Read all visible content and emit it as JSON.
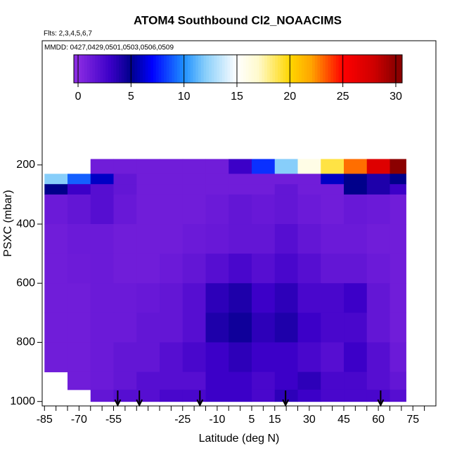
{
  "chart_data": {
    "type": "curtain",
    "title": "ATOM4 Southbound Cl2_NOAACIMS",
    "subtitle": "Flts: 2,3,4,5,6,7",
    "annotation": "MMDD: 0427,0429,0501,0503,0506,0509",
    "x_label": "Latitude (deg N)",
    "y_label": "PSXC (mbar)",
    "xlim": [
      -86,
      85
    ],
    "ylim": [
      1015,
      -220
    ],
    "xticks": [
      -85,
      -70,
      -55,
      -25,
      -10,
      5,
      15,
      30,
      45,
      60,
      75
    ],
    "xminorticks": [
      -80,
      -75,
      -65,
      -60,
      -50,
      -45,
      -40,
      -35,
      -30,
      -20,
      -15,
      -5,
      0,
      10,
      20,
      25,
      35,
      40,
      50,
      55,
      65,
      70,
      80
    ],
    "yticks": [
      200,
      400,
      600,
      800,
      1000
    ],
    "clim": [
      -0.4,
      30.6
    ],
    "cticks": [
      0,
      5,
      10,
      15,
      20,
      25,
      30
    ],
    "colorscale": [
      {
        "value": 0,
        "color": "#8a2be2"
      },
      {
        "value": 3,
        "color": "#3c00c8"
      },
      {
        "value": 5,
        "color": "#00008b"
      },
      {
        "value": 7,
        "color": "#0000ff"
      },
      {
        "value": 10,
        "color": "#1e90ff"
      },
      {
        "value": 12,
        "color": "#87cefa"
      },
      {
        "value": 15,
        "color": "#ffffff"
      },
      {
        "value": 17,
        "color": "#fffacd"
      },
      {
        "value": 20,
        "color": "#ffd700"
      },
      {
        "value": 22,
        "color": "#ffa500"
      },
      {
        "value": 25,
        "color": "#ff0000"
      },
      {
        "value": 28,
        "color": "#cd0000"
      },
      {
        "value": 30,
        "color": "#8b0000"
      }
    ],
    "lat_edges": [
      -85,
      -75,
      -65,
      -55,
      -45,
      -35,
      -25,
      -15,
      -5,
      5,
      15,
      25,
      35,
      45,
      55,
      65,
      72
    ],
    "p_edges": [
      180,
      230,
      265,
      300,
      400,
      500,
      600,
      700,
      800,
      900,
      960,
      1000
    ],
    "z": [
      [
        null,
        null,
        1,
        1,
        1,
        1,
        1,
        1,
        3,
        8,
        12,
        16,
        19,
        23,
        27,
        30
      ],
      [
        12,
        9,
        6,
        1.5,
        1,
        1,
        1,
        1,
        1,
        1,
        1,
        1,
        6,
        5,
        4,
        5
      ],
      [
        5,
        3,
        2,
        1.5,
        1,
        1,
        1,
        1,
        1,
        1,
        1.5,
        1,
        1,
        5,
        4,
        3
      ],
      [
        1.2,
        1.5,
        2,
        1.3,
        1,
        1,
        1,
        1.2,
        1.5,
        1.3,
        1.5,
        1.2,
        1,
        1.3,
        1.2,
        1
      ],
      [
        1,
        1.2,
        1.2,
        1,
        1,
        1,
        1.2,
        1.3,
        1.5,
        1.5,
        2,
        1.5,
        1.2,
        1.2,
        1,
        1
      ],
      [
        1,
        1.1,
        1.2,
        1,
        1,
        1.2,
        1.5,
        2,
        2.5,
        2,
        2.5,
        2,
        1.5,
        1.5,
        1.2,
        1
      ],
      [
        1,
        1,
        1.2,
        1.2,
        1.3,
        1.5,
        2,
        3.5,
        4,
        3,
        3.5,
        2.5,
        2.5,
        3,
        1.5,
        1
      ],
      [
        1,
        1,
        1.2,
        1.2,
        1.5,
        1.5,
        2,
        4,
        4.5,
        3.5,
        4,
        3,
        2.5,
        2.5,
        1.5,
        1
      ],
      [
        1,
        1,
        1.2,
        1.5,
        1.5,
        2,
        2.5,
        3,
        3.5,
        3,
        3,
        2.5,
        2,
        3,
        2,
        1.2
      ],
      [
        null,
        1,
        1.2,
        1.5,
        2,
        2,
        2,
        3,
        3,
        2.5,
        3,
        3.5,
        2.5,
        2.5,
        2,
        1.5
      ],
      [
        null,
        null,
        1.5,
        2,
        2,
        2.5,
        2.5,
        3,
        3,
        2.5,
        3.5,
        3,
        2.5,
        2.5,
        2.5,
        2
      ]
    ],
    "sounding_lats": [
      -53.2,
      -43.8,
      -17.5,
      19.7,
      61
    ]
  }
}
